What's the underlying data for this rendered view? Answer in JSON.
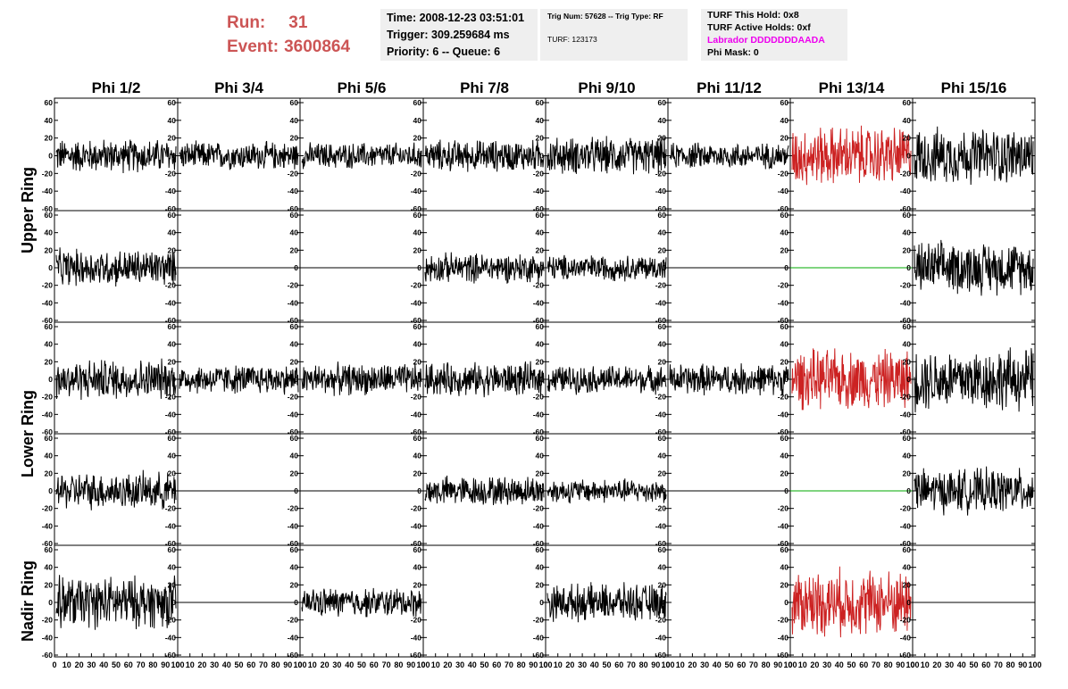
{
  "header": {
    "run_label": "Run:",
    "run_value": "31",
    "event_label": "Event:",
    "event_value": "3600864",
    "time": "Time: 2008-12-23 03:51:01",
    "trigger": "Trigger: 309.259684 ms",
    "priority": "Priority: 6 -- Queue: 6",
    "trig_line": "Trig Num: 57628 -- Trig Type: RF",
    "turf": "TURF: 123173",
    "turf_this_hold": "TURF This Hold: 0x8",
    "turf_active_holds": "TURF Active Holds: 0xf",
    "labrador": "Labrador DDDDDDDAADA",
    "phi_mask": "Phi Mask: 0"
  },
  "colors": {
    "header_red": "#cc5555",
    "labrador_magenta": "#ee00ee",
    "trace_black": "#000000",
    "trace_red": "#cc2222",
    "trace_green": "#00aa00",
    "box_bg": "#efefef"
  },
  "chart_data": {
    "type": "line",
    "phi_columns": [
      "Phi 1/2",
      "Phi 3/4",
      "Phi 5/6",
      "Phi 7/8",
      "Phi 9/10",
      "Phi 11/12",
      "Phi 13/14",
      "Phi 15/16"
    ],
    "ring_labels": [
      "Upper Ring",
      "Lower Ring",
      "Nadir Ring"
    ],
    "ylim": [
      -60,
      60
    ],
    "xlim": [
      0,
      100
    ],
    "y_ticks": [
      "60",
      "40",
      "20",
      "0",
      "-20",
      "-40",
      "-60"
    ],
    "x_ticks": [
      "0",
      "10",
      "20",
      "30",
      "40",
      "50",
      "60",
      "70",
      "80",
      "90",
      "100"
    ],
    "rows": [
      {
        "ring": "Upper Ring",
        "panels": [
          {
            "phi": "Phi 1/2",
            "style": "noise",
            "amplitude": 18,
            "color": "black"
          },
          {
            "phi": "Phi 3/4",
            "style": "noise",
            "amplitude": 15,
            "color": "black"
          },
          {
            "phi": "Phi 5/6",
            "style": "noise",
            "amplitude": 14,
            "color": "black"
          },
          {
            "phi": "Phi 7/8",
            "style": "noise",
            "amplitude": 17,
            "color": "black"
          },
          {
            "phi": "Phi 9/10",
            "style": "noise",
            "amplitude": 20,
            "color": "black"
          },
          {
            "phi": "Phi 11/12",
            "style": "noise",
            "amplitude": 14,
            "color": "black"
          },
          {
            "phi": "Phi 13/14",
            "style": "noise",
            "amplitude": 32,
            "color": "red"
          },
          {
            "phi": "Phi 15/16",
            "style": "noise",
            "amplitude": 30,
            "color": "black"
          }
        ]
      },
      {
        "ring": "Upper Ring",
        "panels": [
          {
            "phi": "Phi 1/2",
            "style": "noise",
            "amplitude": 20,
            "color": "black"
          },
          {
            "phi": "Phi 3/4",
            "style": "flat",
            "amplitude": 0,
            "color": "black"
          },
          {
            "phi": "Phi 5/6",
            "style": "flat",
            "amplitude": 0,
            "color": "black"
          },
          {
            "phi": "Phi 7/8",
            "style": "noise",
            "amplitude": 16,
            "color": "black"
          },
          {
            "phi": "Phi 9/10",
            "style": "noise",
            "amplitude": 14,
            "color": "black"
          },
          {
            "phi": "Phi 11/12",
            "style": "flat",
            "amplitude": 0,
            "color": "black"
          },
          {
            "phi": "Phi 13/14",
            "style": "flat",
            "amplitude": 0,
            "color": "green"
          },
          {
            "phi": "Phi 15/16",
            "style": "noise",
            "amplitude": 28,
            "color": "black"
          }
        ]
      },
      {
        "ring": "Lower Ring",
        "panels": [
          {
            "phi": "Phi 1/2",
            "style": "noise",
            "amplitude": 22,
            "color": "black"
          },
          {
            "phi": "Phi 3/4",
            "style": "noise",
            "amplitude": 16,
            "color": "black"
          },
          {
            "phi": "Phi 5/6",
            "style": "noise",
            "amplitude": 17,
            "color": "black"
          },
          {
            "phi": "Phi 7/8",
            "style": "noise",
            "amplitude": 18,
            "color": "black"
          },
          {
            "phi": "Phi 9/10",
            "style": "noise",
            "amplitude": 15,
            "color": "black"
          },
          {
            "phi": "Phi 11/12",
            "style": "noise",
            "amplitude": 17,
            "color": "black"
          },
          {
            "phi": "Phi 13/14",
            "style": "noise",
            "amplitude": 32,
            "color": "red"
          },
          {
            "phi": "Phi 15/16",
            "style": "noise",
            "amplitude": 34,
            "color": "black"
          }
        ]
      },
      {
        "ring": "Lower Ring",
        "panels": [
          {
            "phi": "Phi 1/2",
            "style": "noise",
            "amplitude": 20,
            "color": "black"
          },
          {
            "phi": "Phi 3/4",
            "style": "flat",
            "amplitude": 0,
            "color": "black"
          },
          {
            "phi": "Phi 5/6",
            "style": "flat",
            "amplitude": 0,
            "color": "black"
          },
          {
            "phi": "Phi 7/8",
            "style": "noise",
            "amplitude": 16,
            "color": "black"
          },
          {
            "phi": "Phi 9/10",
            "style": "noise",
            "amplitude": 13,
            "color": "black"
          },
          {
            "phi": "Phi 11/12",
            "style": "flat",
            "amplitude": 0,
            "color": "black"
          },
          {
            "phi": "Phi 13/14",
            "style": "flat",
            "amplitude": 0,
            "color": "green"
          },
          {
            "phi": "Phi 15/16",
            "style": "noise",
            "amplitude": 24,
            "color": "black"
          }
        ]
      },
      {
        "ring": "Nadir Ring",
        "panels": [
          {
            "phi": "Phi 1/2",
            "style": "noise",
            "amplitude": 28,
            "color": "black"
          },
          {
            "phi": "Phi 3/4",
            "style": "flat",
            "amplitude": 0,
            "color": "black"
          },
          {
            "phi": "Phi 5/6",
            "style": "noise",
            "amplitude": 16,
            "color": "black"
          },
          {
            "phi": "Phi 7/8",
            "style": "empty",
            "amplitude": 0,
            "color": "black"
          },
          {
            "phi": "Phi 9/10",
            "style": "noise",
            "amplitude": 20,
            "color": "black"
          },
          {
            "phi": "Phi 11/12",
            "style": "empty",
            "amplitude": 0,
            "color": "black"
          },
          {
            "phi": "Phi 13/14",
            "style": "noise",
            "amplitude": 36,
            "color": "red"
          },
          {
            "phi": "Phi 15/16",
            "style": "flat",
            "amplitude": 0,
            "color": "black"
          }
        ]
      }
    ]
  }
}
